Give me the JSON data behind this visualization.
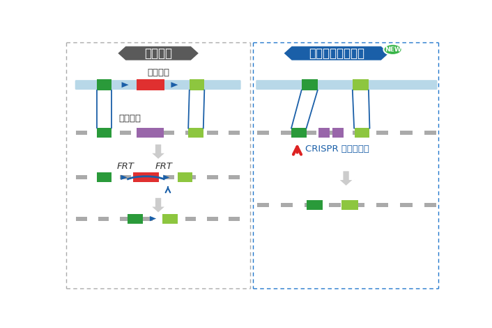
{
  "bg_color": "#ffffff",
  "left_title": "传统方法",
  "right_title": "金斯瑞的全新服务",
  "left_title_bg": "#5a5a5a",
  "right_title_bg": "#1a5fa8",
  "new_badge_color": "#3ab54a",
  "border_color_left": "#aaaaaa",
  "border_color_right": "#2277cc",
  "label_screen_marker": "筛选标记",
  "label_target_gene": "目的基因",
  "label_frt1": "FRT",
  "label_frt2": "FRT",
  "label_crispr": "CRISPR 切断基因组",
  "color_green_dark": "#2a9a3a",
  "color_green_light": "#8dc63f",
  "color_red": "#e03030",
  "color_purple": "#9966aa",
  "color_blue_arrow": "#1a5fa8",
  "color_dna_top": "#b8d8e8",
  "color_dna_bottom": "#aaaaaa",
  "color_crispr_arrow": "#dd2222",
  "color_step_arrow": "#cccccc"
}
